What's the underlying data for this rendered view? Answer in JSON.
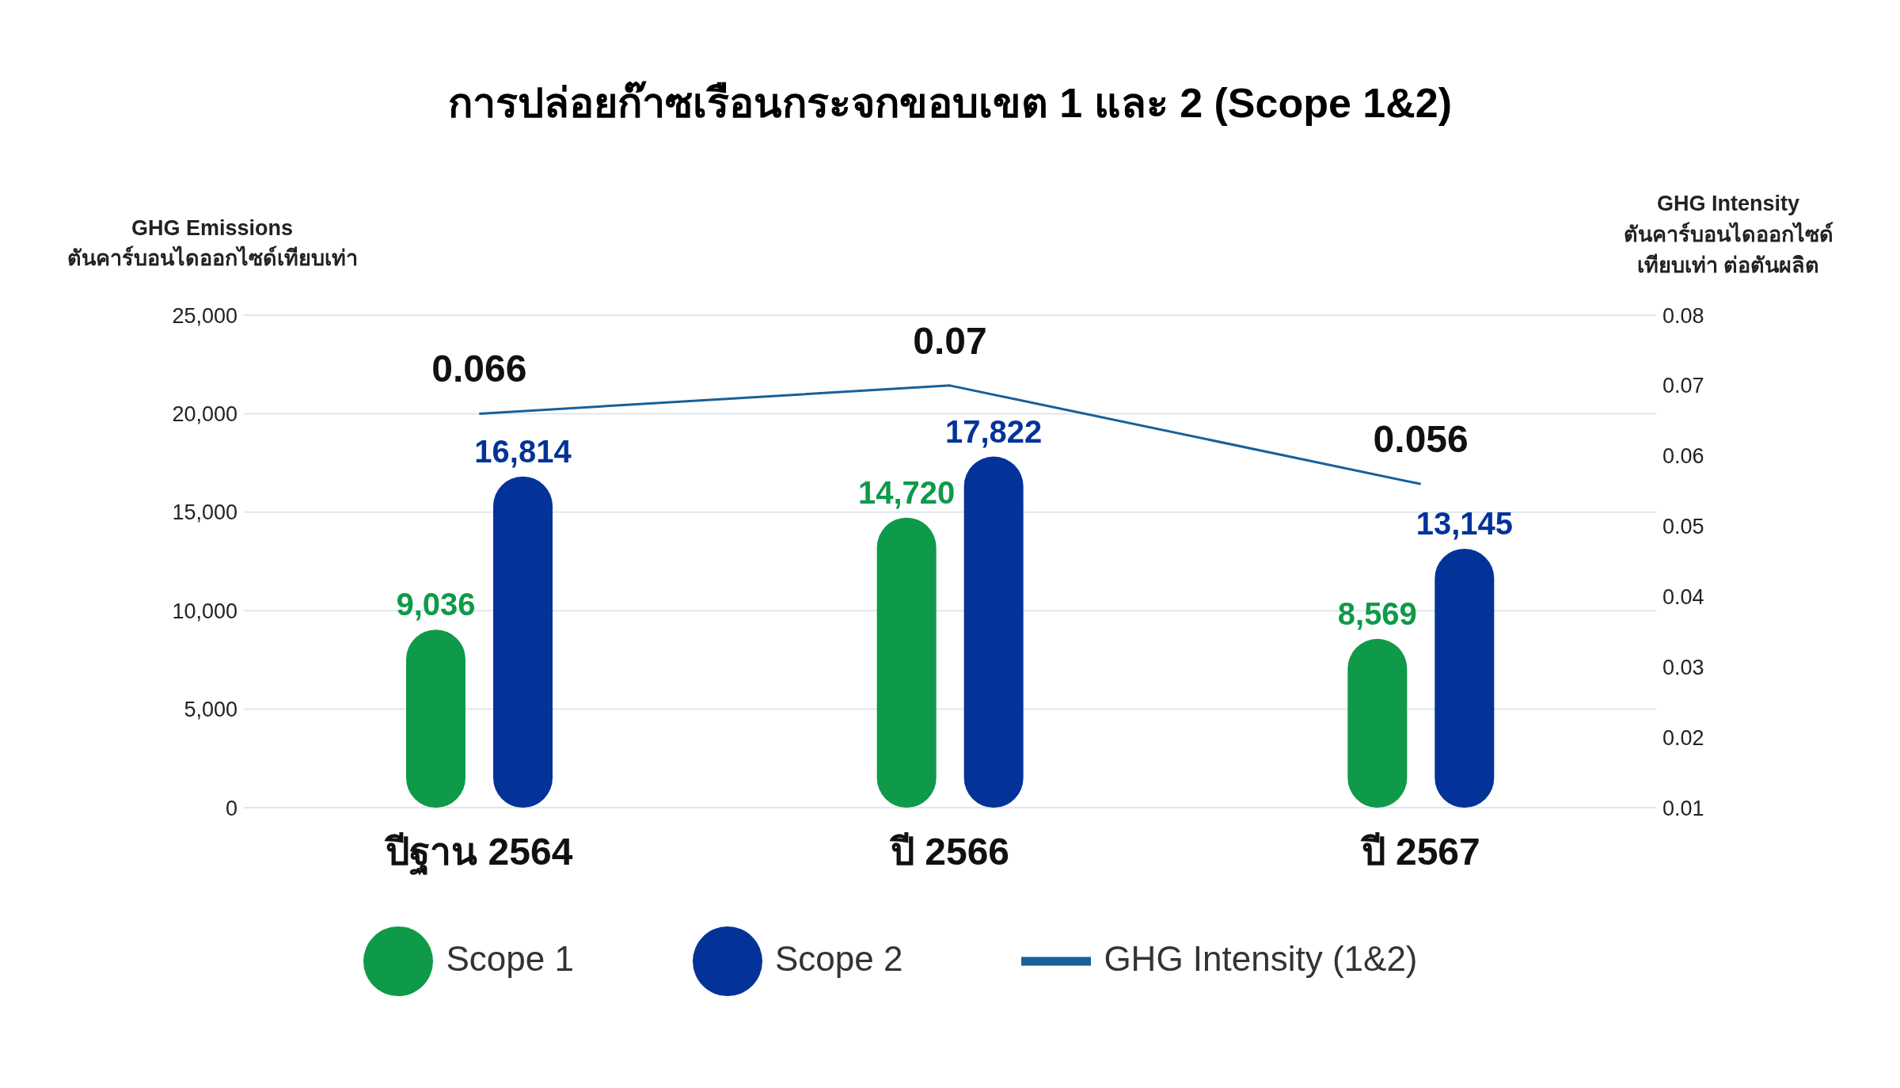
{
  "chart_data": {
    "type": "bar",
    "title": "การปล่อยก๊าซเรือนกระจกขอบเขต 1 และ 2 (Scope 1&2)",
    "ylabel": "GHG Emissions\nตันคาร์บอนไดออกไซด์เทียบเท่า",
    "y2label": "GHG Intensity\nตันคาร์บอนไดออกไซด์\nเทียบเท่า ต่อตันผลิต",
    "categories": [
      "ปีฐาน 2564",
      "ปี 2566",
      "ปี  2567"
    ],
    "series": [
      {
        "name": "Scope 1",
        "color": "#0e9a48",
        "values": [
          9036,
          14720,
          8569
        ],
        "value_labels": [
          "9,036",
          "14,720",
          "8,569"
        ]
      },
      {
        "name": "Scope 2",
        "color": "#033399",
        "values": [
          16814,
          17822,
          13145
        ],
        "value_labels": [
          "16,814",
          "17,822",
          "13,145"
        ]
      },
      {
        "name": "GHG Intensity (1&2)",
        "type": "line",
        "axis": "y2",
        "color": "#17609a",
        "values": [
          0.066,
          0.07,
          0.056
        ],
        "value_labels": [
          "0.066",
          "0.07",
          "0.056"
        ]
      }
    ],
    "ylim": [
      0,
      25000
    ],
    "yticks": [
      0,
      {
        "value": 5000,
        "label": "5,000"
      },
      {
        "value": 10000,
        "label": "10,000"
      },
      {
        "value": 15000,
        "label": "15,000"
      },
      {
        "value": 20000,
        "label": "20,000"
      },
      {
        "value": 25000,
        "label": "25,000"
      }
    ],
    "y2lim": [
      0.01,
      0.08
    ],
    "y2ticks": [
      0.01,
      0.02,
      0.03,
      0.04,
      0.05,
      0.06,
      0.07,
      0.08
    ],
    "grid": "y",
    "legend": "bottom",
    "marker": "none"
  }
}
